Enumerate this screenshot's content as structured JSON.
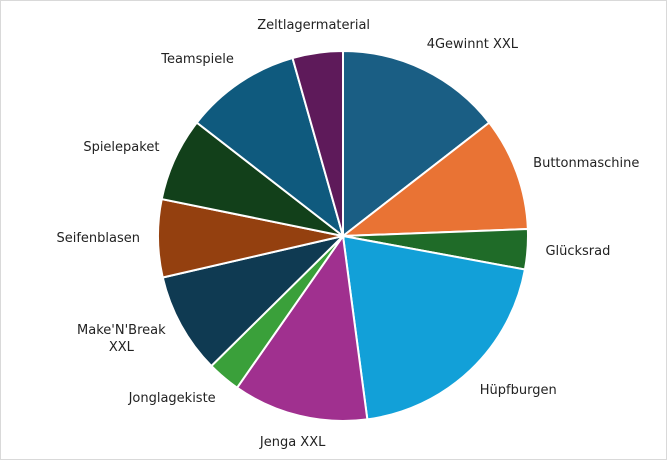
{
  "chart_data": {
    "type": "pie",
    "categories": [
      "4Gewinnt XXL",
      "Buttonmaschine",
      "Glücksrad",
      "Hüpfburgen",
      "Jenga XXL",
      "Jonglagekiste",
      "Make'N'Break XXL",
      "Seifenblasen",
      "Spielepaket",
      "Teamspiele",
      "Zeltlagermaterial"
    ],
    "values": [
      14.5,
      9.9,
      3.5,
      20,
      11.8,
      2.9,
      8.8,
      6.8,
      7.3,
      10.1,
      4.4
    ],
    "colors": [
      "#1a5e84",
      "#e97334",
      "#1f6b28",
      "#12a0d8",
      "#a0308f",
      "#3aa03a",
      "#0f3a52",
      "#94400f",
      "#12401a",
      "#0f5a7e",
      "#5e1a5a"
    ]
  }
}
